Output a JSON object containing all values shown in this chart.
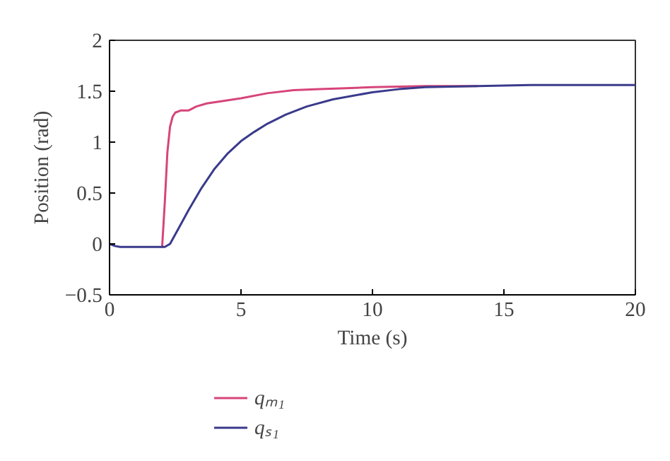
{
  "chart_data": {
    "type": "line",
    "xlabel": "Time (s)",
    "ylabel": "Position (rad)",
    "xlim": [
      0,
      20
    ],
    "ylim": [
      -0.5,
      2
    ],
    "xticks": [
      0,
      5,
      10,
      15,
      20
    ],
    "yticks": [
      -0.5,
      0,
      0.5,
      1,
      1.5,
      2
    ],
    "grid": false,
    "legend": "bottom",
    "line_style": "solid",
    "marker": "none",
    "series": [
      {
        "name": "qₘ₁",
        "color": "#d6457a",
        "x": [
          2.0,
          2.1,
          2.2,
          2.3,
          2.4,
          2.5,
          2.7,
          3.0,
          3.3,
          3.7,
          4.2,
          5,
          6,
          7,
          8,
          9,
          10,
          12,
          14
        ],
        "values": [
          -0.03,
          0.4,
          0.9,
          1.15,
          1.25,
          1.29,
          1.31,
          1.31,
          1.35,
          1.38,
          1.4,
          1.43,
          1.48,
          1.51,
          1.52,
          1.53,
          1.54,
          1.55,
          1.55
        ]
      },
      {
        "name": "qₛ₁",
        "color": "#3a3a8c",
        "x": [
          0,
          0.2,
          0.4,
          1,
          1.5,
          2.1,
          2.3,
          2.6,
          3.0,
          3.5,
          4.0,
          4.5,
          5,
          5.5,
          6,
          6.7,
          7.5,
          8.5,
          10,
          11,
          12,
          14,
          16,
          18,
          20
        ],
        "values": [
          0,
          -0.02,
          -0.03,
          -0.03,
          -0.03,
          -0.03,
          0.0,
          0.14,
          0.33,
          0.55,
          0.74,
          0.89,
          1.01,
          1.1,
          1.18,
          1.27,
          1.35,
          1.42,
          1.49,
          1.52,
          1.54,
          1.55,
          1.56,
          1.56,
          1.56
        ]
      }
    ]
  }
}
